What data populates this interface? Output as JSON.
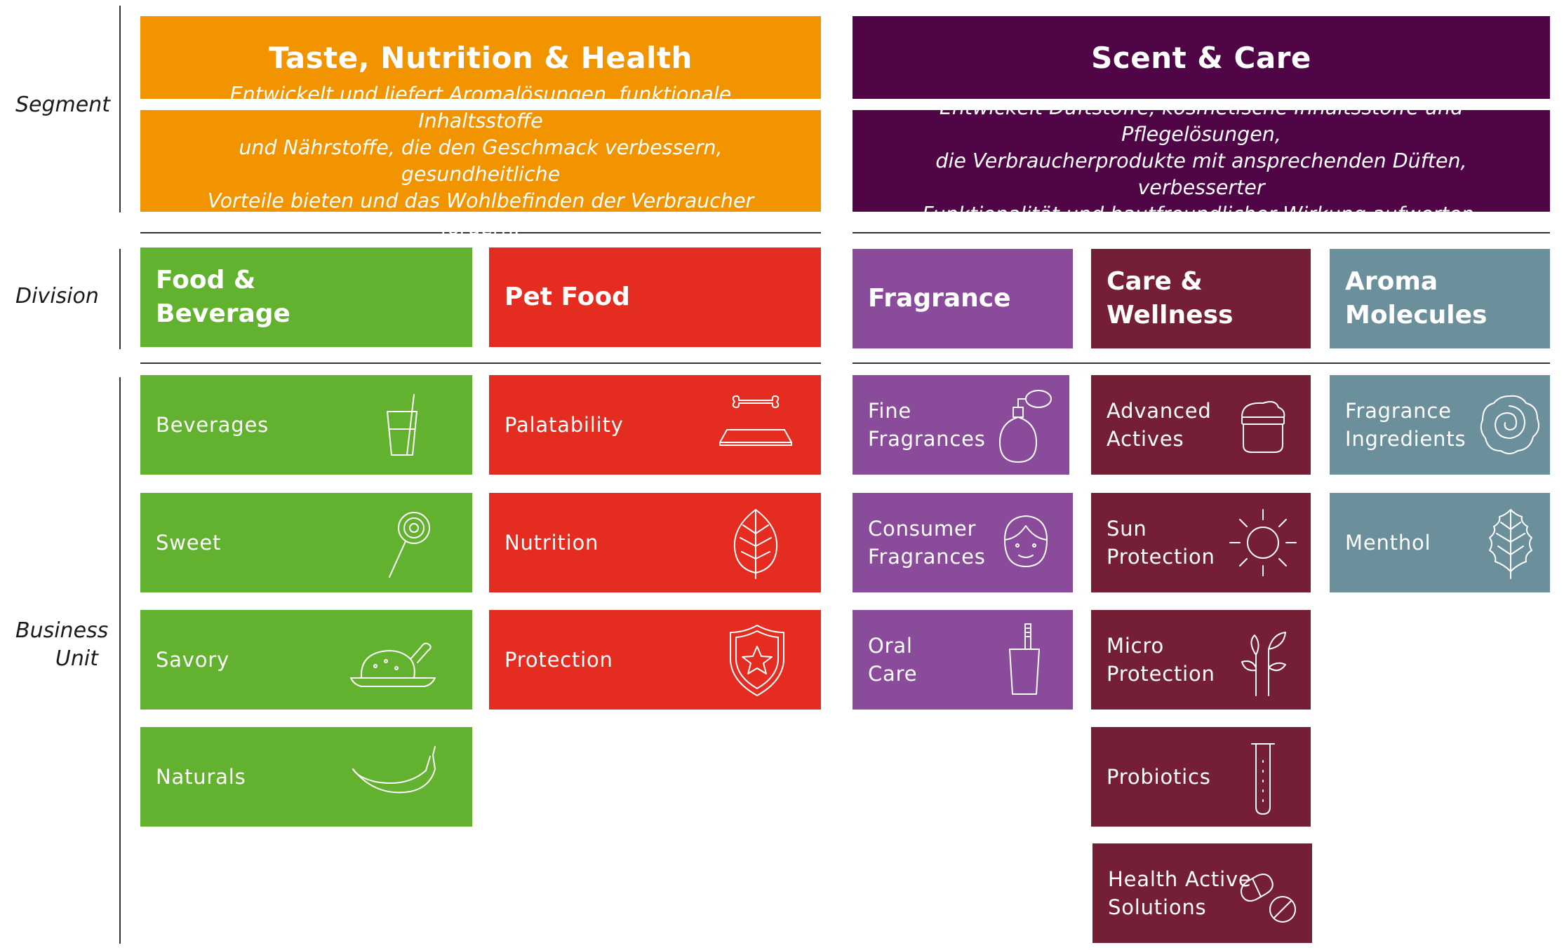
{
  "row_labels": {
    "segment": "Segment",
    "division": "Division",
    "business_unit_line1": "Business",
    "business_unit_line2": "Unit"
  },
  "segments": [
    {
      "title": "Taste, Nutrition & Health",
      "desc_lines": [
        "Entwickelt und liefert Aromalösungen, funktionale Inhaltsstoffe",
        "und Nährstoffe, die den Geschmack verbessern, gesundheitliche",
        "Vorteile bieten und das Wohlbefinden der Verbraucher fördern."
      ],
      "color": "#f29400"
    },
    {
      "title": "Scent & Care",
      "desc_lines": [
        "Entwickelt Duftstoffe, kosmetische Inhaltsstoffe und Pflegelösungen,",
        "die Verbraucherprodukte mit ansprechenden Düften, verbesserter",
        "Funktionalität und hautfreundlicher Wirkung aufwerten."
      ],
      "color": "#500546"
    }
  ],
  "divisions": [
    {
      "lines": [
        "Food &",
        "Beverage"
      ],
      "color": "#62b22f"
    },
    {
      "lines": [
        "Pet Food"
      ],
      "color": "#e42d20"
    },
    {
      "lines": [
        "Fragrance"
      ],
      "color": "#894b9a"
    },
    {
      "lines": [
        "Care &",
        "Wellness"
      ],
      "color": "#741f35"
    },
    {
      "lines": [
        "Aroma",
        "Molecules"
      ],
      "color": "#6b909c"
    }
  ],
  "business_units": {
    "food_beverage": [
      {
        "lines": [
          "Beverages"
        ],
        "icon": "glass-icon"
      },
      {
        "lines": [
          "Sweet"
        ],
        "icon": "lollipop-icon"
      },
      {
        "lines": [
          "Savory"
        ],
        "icon": "roast-chicken-icon"
      },
      {
        "lines": [
          "Naturals"
        ],
        "icon": "banana-icon"
      }
    ],
    "pet_food": [
      {
        "lines": [
          "Palatability"
        ],
        "icon": "pet-bowl-icon"
      },
      {
        "lines": [
          "Nutrition"
        ],
        "icon": "leaf-icon"
      },
      {
        "lines": [
          "Protection"
        ],
        "icon": "shield-star-icon"
      }
    ],
    "fragrance": [
      {
        "lines": [
          "Fine",
          "Fragrances"
        ],
        "icon": "perfume-bottle-icon"
      },
      {
        "lines": [
          "Consumer",
          "Fragrances"
        ],
        "icon": "face-icon"
      },
      {
        "lines": [
          "Oral",
          "Care"
        ],
        "icon": "toothbrush-cup-icon"
      }
    ],
    "care_wellness": [
      {
        "lines": [
          "Advanced",
          "Actives"
        ],
        "icon": "cream-jar-icon"
      },
      {
        "lines": [
          "Sun",
          "Protection"
        ],
        "icon": "sun-icon"
      },
      {
        "lines": [
          "Micro",
          "Protection"
        ],
        "icon": "sprout-icon"
      },
      {
        "lines": [
          "Probiotics"
        ],
        "icon": "test-tube-icon"
      },
      {
        "lines": [
          "Health Active",
          "Solutions"
        ],
        "icon": "pills-icon"
      }
    ],
    "aroma_molecules": [
      {
        "lines": [
          "Fragrance",
          "Ingredients"
        ],
        "icon": "rose-icon"
      },
      {
        "lines": [
          "Menthol"
        ],
        "icon": "mint-leaf-icon"
      }
    ]
  }
}
